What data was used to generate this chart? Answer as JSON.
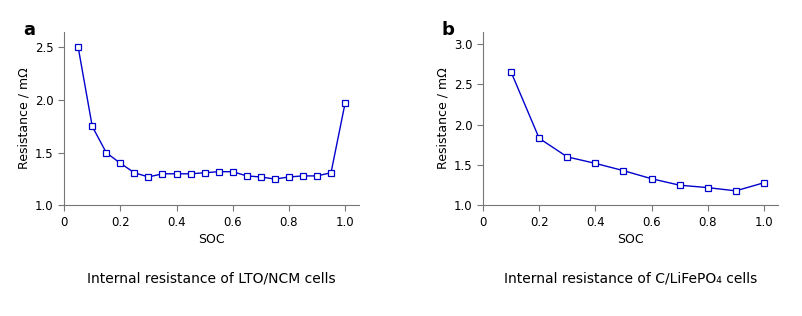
{
  "panel_a": {
    "label": "a",
    "title": "Internal resistance of LTO/NCM cells",
    "xlabel": "SOC",
    "ylabel": "Resistance / mΩ",
    "xlim": [
      0,
      1.05
    ],
    "ylim": [
      1.0,
      2.65
    ],
    "yticks": [
      1.0,
      1.5,
      2.0,
      2.5
    ],
    "xticks": [
      0,
      0.2,
      0.4,
      0.6,
      0.8,
      1.0
    ],
    "soc": [
      0.05,
      0.1,
      0.15,
      0.2,
      0.25,
      0.3,
      0.35,
      0.4,
      0.45,
      0.5,
      0.55,
      0.6,
      0.65,
      0.7,
      0.75,
      0.8,
      0.85,
      0.9,
      0.95,
      1.0
    ],
    "resistance": [
      2.5,
      1.75,
      1.5,
      1.4,
      1.31,
      1.27,
      1.3,
      1.3,
      1.3,
      1.31,
      1.32,
      1.32,
      1.28,
      1.27,
      1.25,
      1.27,
      1.28,
      1.28,
      1.31,
      1.97
    ]
  },
  "panel_b": {
    "label": "b",
    "title": "Internal resistance of C/LiFePO₄ cells",
    "xlabel": "SOC",
    "ylabel": "Resistance / mΩ",
    "xlim": [
      0,
      1.05
    ],
    "ylim": [
      1.0,
      3.15
    ],
    "yticks": [
      1.0,
      1.5,
      2.0,
      2.5,
      3.0
    ],
    "xticks": [
      0,
      0.2,
      0.4,
      0.6,
      0.8,
      1.0
    ],
    "soc": [
      0.1,
      0.2,
      0.3,
      0.4,
      0.5,
      0.6,
      0.7,
      0.8,
      0.9,
      1.0
    ],
    "resistance": [
      2.65,
      1.83,
      1.6,
      1.52,
      1.43,
      1.33,
      1.25,
      1.22,
      1.18,
      1.28
    ]
  },
  "line_color": "#0000cc",
  "marker": "s",
  "marker_size": 4,
  "marker_facecolor": "white",
  "linewidth": 1.0,
  "axis_label_fontsize": 9,
  "tick_fontsize": 8.5,
  "caption_fontsize": 10,
  "panel_label_fontsize": 13,
  "spine_color": "#777777",
  "background_color": "#ffffff"
}
